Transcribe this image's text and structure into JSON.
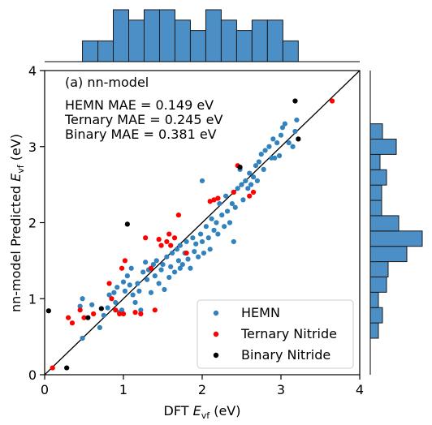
{
  "chart_data": {
    "type": "scatter",
    "title": "",
    "panel_label": "(a) nn-model",
    "xlabel_prefix": "DFT ",
    "xlabel_symbol": "E",
    "xlabel_sub": "vf",
    "xlabel_suffix": " (eV)",
    "ylabel_prefix": "nn-model Predicted ",
    "ylabel_symbol": "E",
    "ylabel_sub": "vf",
    "ylabel_suffix": " (eV)",
    "xlim": [
      0,
      4
    ],
    "ylim": [
      0,
      4
    ],
    "xticks": [
      "0",
      "1",
      "2",
      "3",
      "4"
    ],
    "yticks": [
      "0",
      "1",
      "2",
      "3",
      "4"
    ],
    "grid": false,
    "diagonal_line": true,
    "annotations": [
      "HEMN MAE = 0.149 eV",
      "Ternary MAE = 0.245 eV",
      "Binary MAE = 0.381 eV"
    ],
    "legend_position": "bottom-right",
    "series": [
      {
        "name": "HEMN",
        "color": "#3182bd",
        "points": [
          [
            0.48,
            0.48
          ],
          [
            0.45,
            0.9
          ],
          [
            0.48,
            1.0
          ],
          [
            0.6,
            0.92
          ],
          [
            0.7,
            0.62
          ],
          [
            0.75,
            0.78
          ],
          [
            0.8,
            0.88
          ],
          [
            0.82,
            1.05
          ],
          [
            0.88,
            1.08
          ],
          [
            0.9,
            0.95
          ],
          [
            0.92,
            1.15
          ],
          [
            0.95,
            0.82
          ],
          [
            0.98,
            0.85
          ],
          [
            1.0,
            1.22
          ],
          [
            1.02,
            1.1
          ],
          [
            1.05,
            1.3
          ],
          [
            1.08,
            1.18
          ],
          [
            1.1,
            1.4
          ],
          [
            1.12,
            1.05
          ],
          [
            1.15,
            0.95
          ],
          [
            1.18,
            1.2
          ],
          [
            1.2,
            1.1
          ],
          [
            1.22,
            0.85
          ],
          [
            1.25,
            1.35
          ],
          [
            1.28,
            1.48
          ],
          [
            1.3,
            1.25
          ],
          [
            1.32,
            1.38
          ],
          [
            1.35,
            1.08
          ],
          [
            1.38,
            1.45
          ],
          [
            1.4,
            1.3
          ],
          [
            1.42,
            1.5
          ],
          [
            1.45,
            1.2
          ],
          [
            1.48,
            1.38
          ],
          [
            1.5,
            1.45
          ],
          [
            1.52,
            1.12
          ],
          [
            1.55,
            1.55
          ],
          [
            1.58,
            1.28
          ],
          [
            1.6,
            1.42
          ],
          [
            1.62,
            1.6
          ],
          [
            1.65,
            1.35
          ],
          [
            1.68,
            1.65
          ],
          [
            1.7,
            1.5
          ],
          [
            1.72,
            1.7
          ],
          [
            1.75,
            1.45
          ],
          [
            1.78,
            1.6
          ],
          [
            1.8,
            1.75
          ],
          [
            1.82,
            1.52
          ],
          [
            1.85,
            1.4
          ],
          [
            1.88,
            1.8
          ],
          [
            1.9,
            1.62
          ],
          [
            1.92,
            1.72
          ],
          [
            1.95,
            1.55
          ],
          [
            1.98,
            1.85
          ],
          [
            2.0,
            1.75
          ],
          [
            2.02,
            1.6
          ],
          [
            2.05,
            1.95
          ],
          [
            2.08,
            1.8
          ],
          [
            2.1,
            1.65
          ],
          [
            2.12,
            2.05
          ],
          [
            2.15,
            1.9
          ],
          [
            2.18,
            2.0
          ],
          [
            2.2,
            1.85
          ],
          [
            2.22,
            2.25
          ],
          [
            2.25,
            2.1
          ],
          [
            2.28,
            1.95
          ],
          [
            2.3,
            2.35
          ],
          [
            2.32,
            2.15
          ],
          [
            2.35,
            2.0
          ],
          [
            2.38,
            2.25
          ],
          [
            2.4,
            2.4
          ],
          [
            2.42,
            2.2
          ],
          [
            2.45,
            2.45
          ],
          [
            2.5,
            2.5
          ],
          [
            2.52,
            2.3
          ],
          [
            2.55,
            2.55
          ],
          [
            2.58,
            2.45
          ],
          [
            2.6,
            2.65
          ],
          [
            2.62,
            2.5
          ],
          [
            2.65,
            2.6
          ],
          [
            2.68,
            2.75
          ],
          [
            2.7,
            2.55
          ],
          [
            2.72,
            2.8
          ],
          [
            2.75,
            2.9
          ],
          [
            2.78,
            2.7
          ],
          [
            2.8,
            2.95
          ],
          [
            2.85,
            3.0
          ],
          [
            2.88,
            2.85
          ],
          [
            2.9,
            3.1
          ],
          [
            2.95,
            3.05
          ],
          [
            2.98,
            2.88
          ],
          [
            3.0,
            3.15
          ],
          [
            3.02,
            3.25
          ],
          [
            3.05,
            3.3
          ],
          [
            3.1,
            3.05
          ],
          [
            3.15,
            3.0
          ],
          [
            3.2,
            3.35
          ],
          [
            3.18,
            3.2
          ],
          [
            2.92,
            2.85
          ],
          [
            1.72,
            1.4
          ],
          [
            2.4,
            1.75
          ],
          [
            2.0,
            2.55
          ],
          [
            2.48,
            2.7
          ]
        ]
      },
      {
        "name": "Ternary Nitride",
        "color": "#ff0000",
        "points": [
          [
            0.1,
            0.09
          ],
          [
            0.3,
            0.75
          ],
          [
            0.35,
            0.68
          ],
          [
            0.45,
            0.85
          ],
          [
            0.5,
            0.75
          ],
          [
            0.62,
            0.8
          ],
          [
            0.82,
            1.2
          ],
          [
            0.85,
            1.0
          ],
          [
            0.9,
            0.85
          ],
          [
            0.95,
            0.8
          ],
          [
            0.98,
            1.4
          ],
          [
            1.0,
            0.8
          ],
          [
            1.02,
            1.5
          ],
          [
            1.15,
            0.82
          ],
          [
            1.22,
            0.8
          ],
          [
            1.28,
            1.8
          ],
          [
            1.35,
            1.4
          ],
          [
            1.4,
            0.85
          ],
          [
            1.45,
            1.78
          ],
          [
            1.48,
            1.7
          ],
          [
            1.55,
            1.75
          ],
          [
            1.58,
            1.85
          ],
          [
            1.6,
            1.7
          ],
          [
            1.65,
            1.8
          ],
          [
            1.7,
            2.1
          ],
          [
            1.8,
            1.6
          ],
          [
            2.1,
            2.28
          ],
          [
            2.15,
            2.3
          ],
          [
            2.2,
            2.32
          ],
          [
            2.4,
            2.4
          ],
          [
            2.45,
            2.75
          ],
          [
            2.6,
            2.35
          ],
          [
            2.65,
            2.4
          ],
          [
            3.65,
            3.6
          ]
        ]
      },
      {
        "name": "Binary Nitride",
        "color": "#000000",
        "points": [
          [
            0.05,
            0.84
          ],
          [
            0.28,
            0.09
          ],
          [
            0.55,
            0.75
          ],
          [
            0.72,
            0.87
          ],
          [
            1.05,
            1.98
          ],
          [
            2.48,
            2.73
          ],
          [
            3.18,
            3.6
          ],
          [
            3.22,
            3.1
          ]
        ]
      }
    ],
    "top_histogram": {
      "range": [
        0,
        4
      ],
      "bins": 14,
      "counts": [
        2,
        2,
        5,
        4,
        5,
        5,
        4,
        3,
        5,
        4,
        3,
        4,
        4,
        2
      ],
      "color": "#4c8fc7"
    },
    "right_histogram": {
      "range": [
        0,
        4
      ],
      "bins": 14,
      "counts": [
        1,
        1.5,
        1,
        2,
        2.2,
        4.5,
        6.4,
        3.5,
        1.4,
        1.4,
        2,
        1.2,
        3.2,
        1.5
      ],
      "color": "#4c8fc7"
    }
  }
}
